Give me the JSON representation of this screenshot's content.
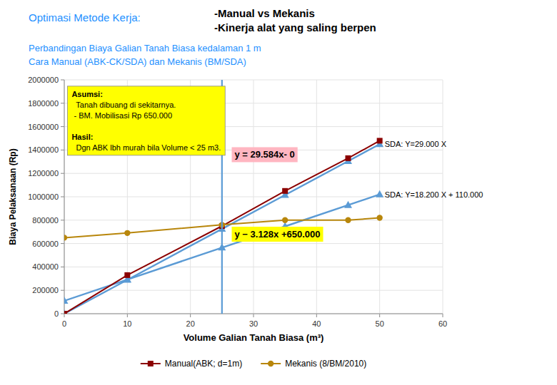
{
  "chart_data": {
    "type": "line",
    "title": [
      "Optimasi Metode Kerja:",
      "-Manual vs Mekanis",
      "-Kinerja alat yang saling berpen"
    ],
    "subtitle": [
      "Perbandingan Biaya Galian Tanah Biasa kedalaman 1 m",
      "Cara Manual (ABK-CK/SDA) dan Mekanis (BM/SDA)"
    ],
    "x_label": "Volume Galian Tanah Biasa (m³)",
    "y_label": "Biaya Pelaksanaan (Rp)",
    "x": [
      0,
      10,
      25,
      35,
      45,
      50
    ],
    "series": [
      {
        "name": "Manual(ABK; d=1m)",
        "color": "#8B0000",
        "marker": "square",
        "values": [
          0,
          330000,
          750000,
          1050000,
          1330000,
          1479200
        ]
      },
      {
        "name": "Mekanis (8/BM/2010)",
        "color": "#B8860B",
        "marker": "circle",
        "values": [
          650000,
          690000,
          760000,
          800000,
          800000,
          820000
        ]
      },
      {
        "color": "#5B9BD5",
        "marker": "triangle",
        "values": [
          0,
          290000,
          725000,
          1015000,
          1305000,
          1450000
        ]
      },
      {
        "color": "#5B9BD5",
        "marker": "triangle",
        "values": [
          110000,
          292000,
          565000,
          747000,
          929000,
          1020000
        ]
      }
    ],
    "xlim": [
      0,
      60
    ],
    "ylim": [
      0,
      2000000
    ],
    "xticks": [
      0,
      10,
      20,
      30,
      40,
      50,
      60
    ],
    "yticks": [
      0,
      200000,
      400000,
      600000,
      800000,
      1000000,
      1200000,
      1400000,
      1600000,
      1800000,
      2000000
    ],
    "grid": true,
    "legend": "bottom",
    "annotations": [
      {
        "type": "vline",
        "x": 25,
        "color": "#5B9BD5"
      },
      {
        "type": "label",
        "text": "SDA: Y=29.000 X",
        "x": 50,
        "y": 1450000
      },
      {
        "type": "label",
        "text": "SDA: Y=18.200 X + 110.000",
        "x": 50,
        "y": 1020000
      },
      {
        "type": "equation",
        "text": "y = 29.584x- 0",
        "x": 27,
        "y": 1360000,
        "color": "#FFB6C1"
      },
      {
        "type": "equation",
        "text": "y − 3.128x +650.000",
        "x": 27,
        "y": 680000,
        "color": "#FFFF00"
      },
      {
        "type": "note",
        "x": 0.5,
        "y": 1940000,
        "color": "#FFFF00",
        "sections": [
          {
            "title": "Asumsi:",
            "lines": [
              "  Tanah dibuang di sekitarnya.",
              " - BM. Mobilisasi Rp 650.000"
            ]
          },
          {
            "title": "Hasil:",
            "lines": [
              "  Dgn ABK lbh murah bila Volume < 25 m3."
            ]
          }
        ]
      }
    ]
  }
}
